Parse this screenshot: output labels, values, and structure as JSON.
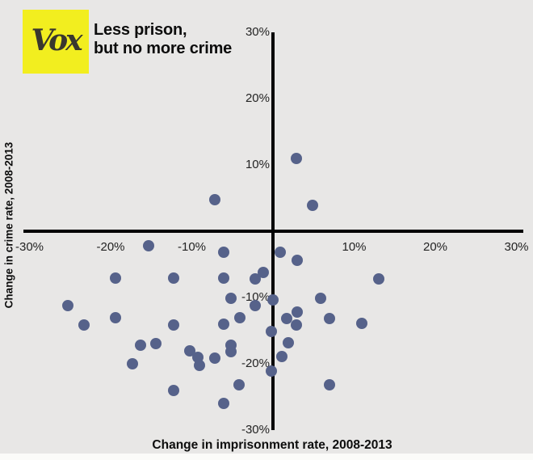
{
  "branding": {
    "logo_text": "Vox",
    "logo_bg": "#f2ee1f",
    "logo_fg": "#39372e"
  },
  "title": {
    "line1": "Less prison,",
    "line2": "but no more crime"
  },
  "chart_data": {
    "type": "scatter",
    "title": "Less prison, but no more crime",
    "xlabel": "Change in imprisonment rate, 2008-2013",
    "ylabel": "Change in crime rate, 2008-2013",
    "xlim": [
      -30,
      30
    ],
    "ylim": [
      -30,
      30
    ],
    "grid": false,
    "legend": null,
    "point_color": "#56628a",
    "axis_color": "#020202",
    "background_color": "#e8e7e6",
    "x_ticks": [
      {
        "value": -30,
        "label": "-30%"
      },
      {
        "value": -20,
        "label": "-20%"
      },
      {
        "value": -10,
        "label": "-10%"
      },
      {
        "value": 10,
        "label": "10%"
      },
      {
        "value": 20,
        "label": "20%"
      },
      {
        "value": 30,
        "label": "30%"
      }
    ],
    "y_ticks": [
      {
        "value": 30,
        "label": "30%"
      },
      {
        "value": 20,
        "label": "20%"
      },
      {
        "value": 10,
        "label": "10%"
      },
      {
        "value": -10,
        "label": "-10%"
      },
      {
        "value": -20,
        "label": "-20%"
      },
      {
        "value": -30,
        "label": "-30%"
      }
    ],
    "points": [
      {
        "x": -7.2,
        "y": 4.8
      },
      {
        "x": 2.9,
        "y": 11.0
      },
      {
        "x": 4.9,
        "y": 3.9
      },
      {
        "x": -15.3,
        "y": -2.2
      },
      {
        "x": -6.1,
        "y": -3.2
      },
      {
        "x": 0.9,
        "y": -3.2
      },
      {
        "x": 3.0,
        "y": -4.4
      },
      {
        "x": -19.4,
        "y": -7.1
      },
      {
        "x": -12.2,
        "y": -7.1
      },
      {
        "x": -6.1,
        "y": -7.1
      },
      {
        "x": -2.2,
        "y": -7.2
      },
      {
        "x": -1.2,
        "y": -6.2
      },
      {
        "x": 0.0,
        "y": -10.4
      },
      {
        "x": -5.2,
        "y": -10.1
      },
      {
        "x": -2.2,
        "y": -11.2
      },
      {
        "x": -25.3,
        "y": -11.2
      },
      {
        "x": -23.3,
        "y": -14.1
      },
      {
        "x": -19.4,
        "y": -13.0
      },
      {
        "x": -12.2,
        "y": -14.1
      },
      {
        "x": -6.1,
        "y": -14.0
      },
      {
        "x": -4.1,
        "y": -13.0
      },
      {
        "x": 5.9,
        "y": -10.1
      },
      {
        "x": 3.0,
        "y": -12.2
      },
      {
        "x": 1.7,
        "y": -13.2
      },
      {
        "x": 2.9,
        "y": -14.1
      },
      {
        "x": 7.0,
        "y": -13.2
      },
      {
        "x": 10.9,
        "y": -13.9
      },
      {
        "x": 13.0,
        "y": -7.2
      },
      {
        "x": -0.2,
        "y": -15.1
      },
      {
        "x": -16.3,
        "y": -17.2
      },
      {
        "x": -14.4,
        "y": -17.0
      },
      {
        "x": -10.2,
        "y": -18.0
      },
      {
        "x": -9.3,
        "y": -19.0
      },
      {
        "x": -9.1,
        "y": -20.2
      },
      {
        "x": -7.2,
        "y": -19.1
      },
      {
        "x": -5.2,
        "y": -17.2
      },
      {
        "x": -5.2,
        "y": -18.2
      },
      {
        "x": -4.2,
        "y": -23.2
      },
      {
        "x": -12.2,
        "y": -24.0
      },
      {
        "x": -6.1,
        "y": -26.0
      },
      {
        "x": -0.2,
        "y": -21.1
      },
      {
        "x": -17.3,
        "y": -20.0
      },
      {
        "x": 1.9,
        "y": -16.8
      },
      {
        "x": 1.1,
        "y": -18.9
      },
      {
        "x": 7.0,
        "y": -23.2
      }
    ]
  }
}
